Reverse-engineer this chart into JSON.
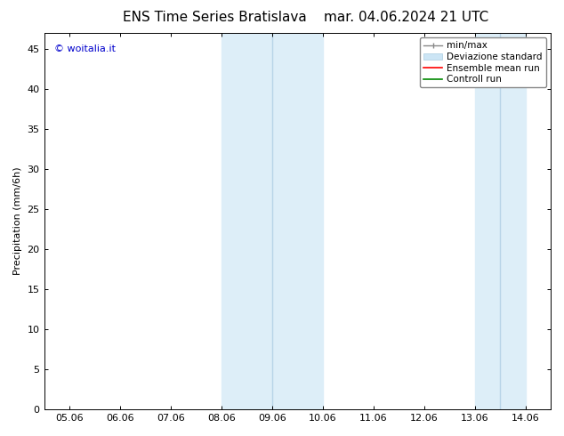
{
  "title": "ENS Time Series Bratislava",
  "title_date": "mar. 04.06.2024 21 UTC",
  "ylabel": "Precipitation (mm/6h)",
  "xlabel": "",
  "ylim": [
    0,
    47
  ],
  "yticks": [
    0,
    5,
    10,
    15,
    20,
    25,
    30,
    35,
    40,
    45
  ],
  "xtick_labels": [
    "05.06",
    "06.06",
    "07.06",
    "08.06",
    "09.06",
    "10.06",
    "11.06",
    "12.06",
    "13.06",
    "14.06"
  ],
  "xtick_positions": [
    5,
    6,
    7,
    8,
    9,
    10,
    11,
    12,
    13,
    14
  ],
  "xlim": [
    4.5,
    14.5
  ],
  "background_color": "#ffffff",
  "plot_bg_color": "#ffffff",
  "shaded_bands": [
    {
      "x_start": 7.5,
      "x_end": 8.5
    },
    {
      "x_start": 8.5,
      "x_end": 10.5
    },
    {
      "x_start": 13.0,
      "x_end": 13.5
    },
    {
      "x_start": 13.5,
      "x_end": 14.5
    }
  ],
  "shade_color": "#ddeef8",
  "watermark_text": "© woitalia.it",
  "watermark_color": "#0000cc",
  "title_fontsize": 11,
  "tick_fontsize": 8,
  "ylabel_fontsize": 8,
  "legend_fontsize": 7.5
}
